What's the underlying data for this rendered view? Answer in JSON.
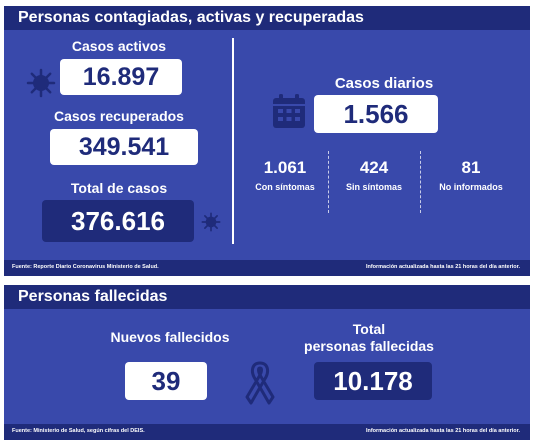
{
  "top": {
    "title": "Personas contagiadas, activas y recuperadas",
    "activos": {
      "label": "Casos activos",
      "value": "16.897"
    },
    "recuperados": {
      "label": "Casos recuperados",
      "value": "349.541"
    },
    "total": {
      "label": "Total de casos",
      "value": "376.616"
    },
    "diarios": {
      "label": "Casos diarios",
      "value": "1.566"
    },
    "breakdown": [
      {
        "value": "1.061",
        "label": "Con síntomas"
      },
      {
        "value": "424",
        "label": "Sin síntomas"
      },
      {
        "value": "81",
        "label": "No informados"
      }
    ],
    "source": "Fuente: Reporte Diario Coronavirus Ministerio de Salud.",
    "note": "Información actualizada hasta las 21 horas del día anterior."
  },
  "bottom": {
    "title": "Personas fallecidas",
    "nuevos": {
      "label": "Nuevos fallecidos",
      "value": "39"
    },
    "total": {
      "label_line1": "Total",
      "label_line2": "personas fallecidas",
      "value": "10.178"
    },
    "source": "Fuente: Ministerio de Salud, según cifras del DEIS.",
    "note": "Información actualizada hasta las 21 horas del día anterior."
  },
  "icons": [
    "virus-icon",
    "calendar-icon",
    "ribbon-icon"
  ],
  "colors": {
    "panel": "#3949ab",
    "header": "#1f2b7a",
    "white": "#ffffff"
  }
}
